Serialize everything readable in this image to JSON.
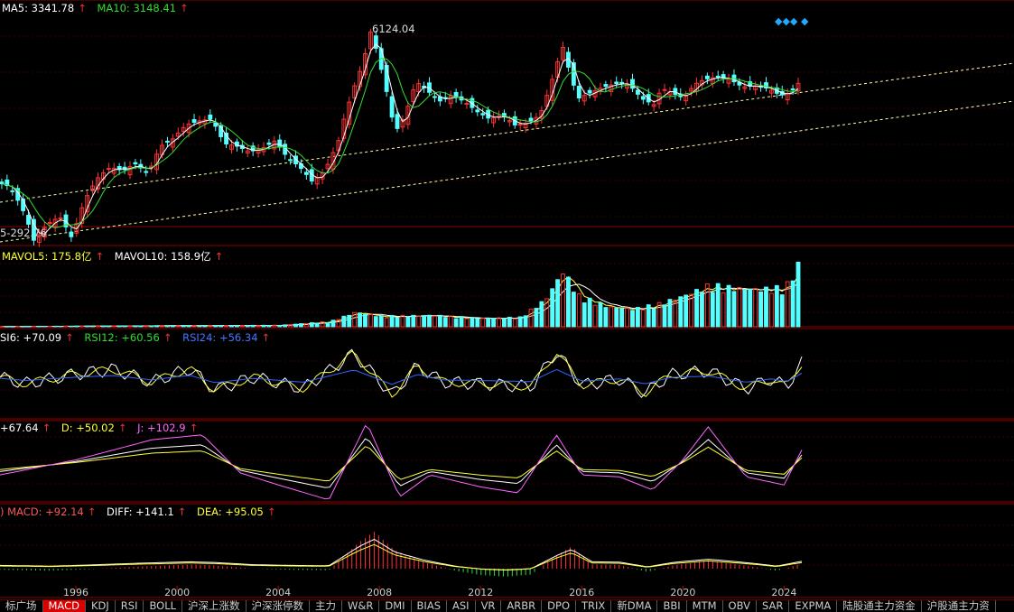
{
  "colors": {
    "up": "#ff3232",
    "down": "#54ffff",
    "ma5": "#ffffff",
    "ma10": "#33dd33",
    "yellow": "#ffff33",
    "magenta": "#ff66ff",
    "blue": "#3366ff",
    "grid": "#7a0000",
    "trend": "#ffffaa"
  },
  "price_panel": {
    "ma5_label": "MA5: 3341.78",
    "ma10_label": "MA10: 3148.41",
    "high_label": "6124.04",
    "low_label": "5-292.76",
    "markers": [
      "◆◆◆",
      "◆"
    ]
  },
  "volume_panel": {
    "mavol5_label": "MAVOL5: 175.8亿",
    "mavol10_label": "MAVOL10: 158.9亿"
  },
  "rsi_panel": {
    "rsi6_label": "SI6: +70.09",
    "rsi12_label": "RSI12: +60.56",
    "rsi24_label": "RSI24: +56.34"
  },
  "kdj_panel": {
    "k_label": "+67.64",
    "d_label": "D: +50.02",
    "j_label": "J: +102.9"
  },
  "macd_panel": {
    "macd_label": ") MACD: +92.14",
    "diff_label": "DIFF: +141.1",
    "dea_label": "DEA: +95.05"
  },
  "arrow": "↑",
  "x_ticks": [
    "1996",
    "2000",
    "2004",
    "2008",
    "2012",
    "2016",
    "2020",
    "2024"
  ],
  "tabs": [
    "标广场",
    "MACD",
    "KDJ",
    "RSI",
    "BOLL",
    "沪深上涨数",
    "沪深涨停数",
    "主力",
    "W&R",
    "DMI",
    "BIAS",
    "ASI",
    "VR",
    "ARBR",
    "DPO",
    "TRIX",
    "新DMA",
    "BBI",
    "MTM",
    "OBV",
    "SAR",
    "EXPMA",
    "陆股通主力资金",
    "沪股通主力资"
  ],
  "active_tab": "MACD",
  "chart_data": {
    "type": "candlestick",
    "title": "",
    "x_range": [
      1993.0,
      2024.7
    ],
    "annotations": {
      "max": 6124.04,
      "min": 292.76
    },
    "price_anchors": [
      [
        1993.0,
        1050
      ],
      [
        1993.5,
        1000
      ],
      [
        1994.0,
        780
      ],
      [
        1994.5,
        520
      ],
      [
        1995.0,
        640
      ],
      [
        1995.5,
        700
      ],
      [
        1996.0,
        540
      ],
      [
        1996.5,
        850
      ],
      [
        1997.0,
        1100
      ],
      [
        1997.5,
        1250
      ],
      [
        1998.0,
        1200
      ],
      [
        1998.5,
        1300
      ],
      [
        1999.0,
        1150
      ],
      [
        1999.5,
        1600
      ],
      [
        2000.0,
        1750
      ],
      [
        2000.5,
        2050
      ],
      [
        2001.0,
        2150
      ],
      [
        2001.5,
        2200
      ],
      [
        2002.0,
        1650
      ],
      [
        2002.5,
        1600
      ],
      [
        2003.0,
        1500
      ],
      [
        2003.5,
        1550
      ],
      [
        2004.0,
        1700
      ],
      [
        2004.5,
        1400
      ],
      [
        2005.0,
        1250
      ],
      [
        2005.5,
        1050
      ],
      [
        2006.0,
        1200
      ],
      [
        2006.5,
        1650
      ],
      [
        2007.0,
        2800
      ],
      [
        2007.5,
        4200
      ],
      [
        2007.8,
        6124
      ],
      [
        2008.2,
        4000
      ],
      [
        2008.6,
        2300
      ],
      [
        2008.9,
        1900
      ],
      [
        2009.3,
        2600
      ],
      [
        2009.6,
        3400
      ],
      [
        2010.0,
        3100
      ],
      [
        2010.5,
        2700
      ],
      [
        2011.0,
        2900
      ],
      [
        2011.5,
        2700
      ],
      [
        2012.0,
        2400
      ],
      [
        2012.5,
        2200
      ],
      [
        2013.0,
        2300
      ],
      [
        2013.5,
        2050
      ],
      [
        2014.0,
        2100
      ],
      [
        2014.5,
        2300
      ],
      [
        2014.9,
        3200
      ],
      [
        2015.4,
        5100
      ],
      [
        2015.7,
        3600
      ],
      [
        2016.0,
        2800
      ],
      [
        2016.5,
        3000
      ],
      [
        2017.0,
        3200
      ],
      [
        2017.6,
        3350
      ],
      [
        2018.0,
        3300
      ],
      [
        2018.5,
        2800
      ],
      [
        2019.0,
        2600
      ],
      [
        2019.3,
        3150
      ],
      [
        2019.8,
        2950
      ],
      [
        2020.2,
        2800
      ],
      [
        2020.6,
        3300
      ],
      [
        2021.0,
        3500
      ],
      [
        2021.5,
        3600
      ],
      [
        2022.0,
        3500
      ],
      [
        2022.5,
        3200
      ],
      [
        2023.0,
        3250
      ],
      [
        2023.5,
        3150
      ],
      [
        2024.0,
        2900
      ],
      [
        2024.4,
        3000
      ],
      [
        2024.7,
        3340
      ]
    ],
    "volume_anchors": [
      [
        1993.0,
        1
      ],
      [
        1996.0,
        3
      ],
      [
        1999.0,
        5
      ],
      [
        2001.0,
        6
      ],
      [
        2004.0,
        7
      ],
      [
        2006.0,
        25
      ],
      [
        2007.0,
        70
      ],
      [
        2008.0,
        50
      ],
      [
        2010.0,
        55
      ],
      [
        2012.0,
        40
      ],
      [
        2013.5,
        45
      ],
      [
        2014.5,
        130
      ],
      [
        2015.2,
        270
      ],
      [
        2015.8,
        150
      ],
      [
        2017.0,
        95
      ],
      [
        2018.0,
        85
      ],
      [
        2019.0,
        110
      ],
      [
        2020.0,
        150
      ],
      [
        2021.0,
        200
      ],
      [
        2022.0,
        185
      ],
      [
        2023.0,
        180
      ],
      [
        2024.0,
        190
      ],
      [
        2024.5,
        300
      ],
      [
        2024.7,
        210
      ]
    ],
    "rsi_anchors": [
      [
        1993.0,
        52
      ],
      [
        1994.0,
        44
      ],
      [
        1996.0,
        56
      ],
      [
        1997.5,
        62
      ],
      [
        1999.0,
        46
      ],
      [
        2000.5,
        63
      ],
      [
        2001.5,
        36
      ],
      [
        2003.0,
        52
      ],
      [
        2005.0,
        38
      ],
      [
        2007.0,
        82
      ],
      [
        2008.5,
        30
      ],
      [
        2009.5,
        66
      ],
      [
        2010.5,
        46
      ],
      [
        2012.0,
        44
      ],
      [
        2014.0,
        40
      ],
      [
        2015.0,
        84
      ],
      [
        2016.0,
        42
      ],
      [
        2017.5,
        50
      ],
      [
        2018.5,
        32
      ],
      [
        2019.5,
        55
      ],
      [
        2021.0,
        60
      ],
      [
        2022.5,
        38
      ],
      [
        2023.5,
        50
      ],
      [
        2024.1,
        40
      ],
      [
        2024.7,
        70
      ]
    ],
    "kdj_anchors": [
      [
        1993.0,
        40
      ],
      [
        1996.0,
        55
      ],
      [
        1999.0,
        75
      ],
      [
        2001.0,
        80
      ],
      [
        2002.5,
        42
      ],
      [
        2004.0,
        30
      ],
      [
        2006.0,
        15
      ],
      [
        2007.5,
        92
      ],
      [
        2008.8,
        18
      ],
      [
        2010.0,
        40
      ],
      [
        2012.0,
        28
      ],
      [
        2013.5,
        22
      ],
      [
        2015.0,
        80
      ],
      [
        2016.0,
        40
      ],
      [
        2017.5,
        38
      ],
      [
        2018.8,
        25
      ],
      [
        2020.0,
        55
      ],
      [
        2021.0,
        88
      ],
      [
        2022.5,
        38
      ],
      [
        2024.0,
        30
      ],
      [
        2024.7,
        65
      ]
    ],
    "macd_anchors": [
      [
        1993.0,
        -20
      ],
      [
        1995.0,
        -40
      ],
      [
        1996.5,
        -10
      ],
      [
        1998.5,
        40
      ],
      [
        2000.5,
        80
      ],
      [
        2001.5,
        60
      ],
      [
        2003.0,
        0
      ],
      [
        2004.5,
        -20
      ],
      [
        2006.0,
        -30
      ],
      [
        2007.2,
        500
      ],
      [
        2007.8,
        700
      ],
      [
        2008.6,
        350
      ],
      [
        2009.8,
        120
      ],
      [
        2011.0,
        -40
      ],
      [
        2012.0,
        -120
      ],
      [
        2013.0,
        -150
      ],
      [
        2014.0,
        -110
      ],
      [
        2015.0,
        250
      ],
      [
        2015.6,
        420
      ],
      [
        2016.4,
        80
      ],
      [
        2017.5,
        70
      ],
      [
        2018.6,
        -60
      ],
      [
        2019.6,
        60
      ],
      [
        2021.0,
        150
      ],
      [
        2022.0,
        90
      ],
      [
        2023.0,
        20
      ],
      [
        2023.7,
        -40
      ],
      [
        2024.7,
        92
      ]
    ],
    "series": [
      {
        "name": "MA5"
      },
      {
        "name": "MA10"
      },
      {
        "name": "MAVOL5"
      },
      {
        "name": "MAVOL10"
      },
      {
        "name": "RSI12"
      },
      {
        "name": "RSI24"
      },
      {
        "name": "D"
      },
      {
        "name": "J"
      },
      {
        "name": "MACD"
      },
      {
        "name": "DIFF"
      },
      {
        "name": "DEA"
      }
    ]
  }
}
